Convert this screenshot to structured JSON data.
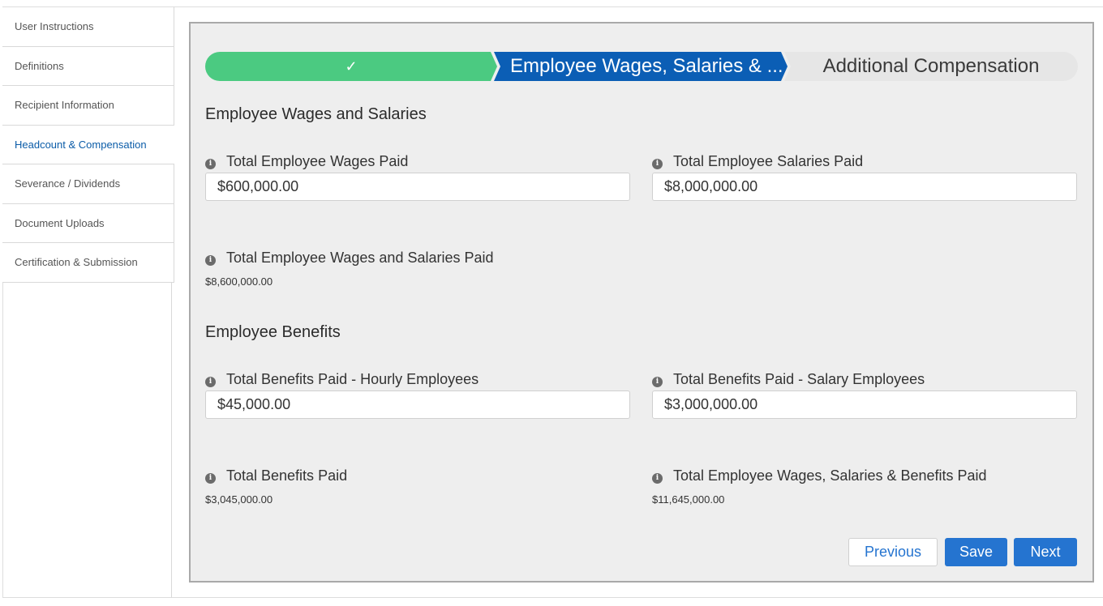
{
  "sidebar": {
    "items": [
      {
        "label": "User Instructions"
      },
      {
        "label": "Definitions"
      },
      {
        "label": "Recipient Information"
      },
      {
        "label": "Headcount & Compensation",
        "active": true
      },
      {
        "label": "Severance / Dividends"
      },
      {
        "label": "Document Uploads"
      },
      {
        "label": "Certification & Submission"
      }
    ]
  },
  "path": {
    "done_icon": "check-icon",
    "current": "Employee Wages, Salaries & ...",
    "next": "Additional Compensation"
  },
  "wages": {
    "title": "Employee Wages and Salaries",
    "wages_paid": {
      "label": "Total Employee Wages Paid",
      "value": "$600,000.00"
    },
    "salaries_paid": {
      "label": "Total Employee Salaries Paid",
      "value": "$8,000,000.00"
    },
    "total": {
      "label": "Total Employee Wages and Salaries Paid",
      "value": "$8,600,000.00"
    }
  },
  "benefits": {
    "title": "Employee Benefits",
    "hourly": {
      "label": "Total Benefits Paid - Hourly Employees",
      "value": "$45,000.00"
    },
    "salary": {
      "label": "Total Benefits Paid - Salary Employees",
      "value": "$3,000,000.00"
    },
    "total": {
      "label": "Total Benefits Paid",
      "value": "$3,045,000.00"
    },
    "grand_total": {
      "label": "Total Employee Wages, Salaries & Benefits Paid",
      "value": "$11,645,000.00"
    }
  },
  "buttons": {
    "previous": "Previous",
    "save": "Save",
    "next": "Next"
  },
  "colors": {
    "done": "#4bca81",
    "current": "#0b5eb5",
    "button": "#2574d0",
    "active_nav": "#0b5ca8"
  }
}
